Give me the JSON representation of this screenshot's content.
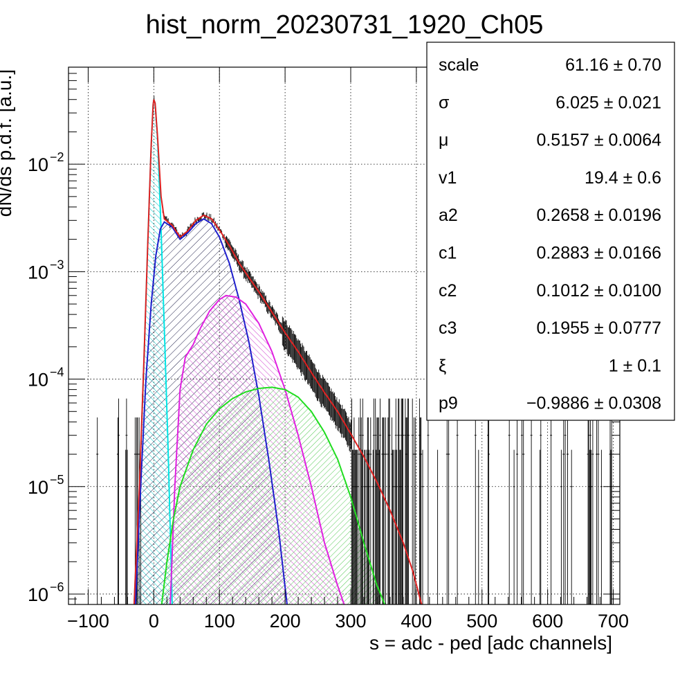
{
  "chart_data": {
    "type": "line",
    "title": "hist_norm_20230731_1920_Ch05",
    "xlabel": "s = adc - ped [adc channels]",
    "ylabel": "dN/ds p.d.f. [a.u.]",
    "xlim": [
      -130,
      710
    ],
    "ylim": [
      8e-07,
      0.08
    ],
    "yscale": "log",
    "grid": true,
    "x_ticks": [
      -100,
      0,
      100,
      200,
      300,
      400,
      500,
      600,
      700
    ],
    "y_ticks": [
      {
        "value": 1e-06,
        "label": "10",
        "exp": "−6"
      },
      {
        "value": 1e-05,
        "label": "10",
        "exp": "−5"
      },
      {
        "value": 0.0001,
        "label": "10",
        "exp": "−4"
      },
      {
        "value": 0.001,
        "label": "10",
        "exp": "−3"
      },
      {
        "value": 0.01,
        "label": "10",
        "exp": "−2"
      }
    ],
    "fit_parameters": [
      {
        "name": "scale",
        "value": "61.16",
        "error": "0.70"
      },
      {
        "name": "σ",
        "value": "6.025",
        "error": "0.021"
      },
      {
        "name": "μ",
        "value": "0.5157",
        "error": "0.0064"
      },
      {
        "name": "v1",
        "value": "19.4",
        "error": "0.6"
      },
      {
        "name": "a2",
        "value": "0.2658",
        "error": "0.0196"
      },
      {
        "name": "c1",
        "value": "0.2883",
        "error": "0.0166"
      },
      {
        "name": "c2",
        "value": "0.1012",
        "error": "0.0100"
      },
      {
        "name": "c3",
        "value": "0.1955",
        "error": "0.0777"
      },
      {
        "name": "ξ",
        "value": "1",
        "error": "0.1"
      },
      {
        "name": "p9",
        "value": "−0.9886",
        "error": "0.0308"
      }
    ],
    "components": [
      {
        "id": "pedestal",
        "color": "#00e5e5",
        "fill_pattern": "hatch-cyan",
        "points": [
          [
            -30,
            8e-07
          ],
          [
            -22,
            1e-05
          ],
          [
            -15,
            0.00015
          ],
          [
            -8,
            0.003
          ],
          [
            -4,
            0.015
          ],
          [
            -1,
            0.036
          ],
          [
            0,
            0.04
          ],
          [
            2,
            0.037
          ],
          [
            6,
            0.016
          ],
          [
            11,
            0.0025
          ],
          [
            16,
            0.0003
          ],
          [
            22,
            2e-05
          ],
          [
            28,
            8e-07
          ]
        ]
      },
      {
        "id": "one-photoelectron",
        "color": "#1e1ecc",
        "fill_pattern": "hatch-navy",
        "points": [
          [
            -28,
            8e-07
          ],
          [
            -20,
            1e-05
          ],
          [
            -12,
            0.0001
          ],
          [
            -4,
            0.0005
          ],
          [
            3,
            0.0014
          ],
          [
            10,
            0.0025
          ],
          [
            16,
            0.0029
          ],
          [
            28,
            0.0026
          ],
          [
            40,
            0.002
          ],
          [
            52,
            0.0023
          ],
          [
            64,
            0.0028
          ],
          [
            76,
            0.0031
          ],
          [
            88,
            0.0028
          ],
          [
            100,
            0.0021
          ],
          [
            115,
            0.0012
          ],
          [
            130,
            0.00055
          ],
          [
            145,
            0.00022
          ],
          [
            160,
            7e-05
          ],
          [
            175,
            1.8e-05
          ],
          [
            190,
            4e-06
          ],
          [
            203,
            8e-07
          ]
        ]
      },
      {
        "id": "two-photoelectron",
        "color": "#e020e0",
        "fill_pattern": "hatch-magenta",
        "points": [
          [
            25,
            8e-07
          ],
          [
            32,
            1e-05
          ],
          [
            40,
            8e-05
          ],
          [
            48,
            0.00016
          ],
          [
            60,
            0.00021
          ],
          [
            70,
            0.00029
          ],
          [
            85,
            0.00043
          ],
          [
            100,
            0.00055
          ],
          [
            110,
            0.0006
          ],
          [
            125,
            0.00058
          ],
          [
            140,
            0.0005
          ],
          [
            160,
            0.00033
          ],
          [
            180,
            0.00018
          ],
          [
            200,
            8e-05
          ],
          [
            220,
            3e-05
          ],
          [
            240,
            1e-05
          ],
          [
            260,
            3e-06
          ],
          [
            280,
            1.2e-06
          ],
          [
            290,
            8e-07
          ]
        ]
      },
      {
        "id": "three-photoelectron",
        "color": "#20dd20",
        "fill_pattern": "hatch-green",
        "points": [
          [
            12,
            8e-07
          ],
          [
            20,
            2e-06
          ],
          [
            30,
            5e-06
          ],
          [
            40,
            1e-05
          ],
          [
            60,
            2.2e-05
          ],
          [
            80,
            3.8e-05
          ],
          [
            100,
            5.3e-05
          ],
          [
            120,
            6.6e-05
          ],
          [
            140,
            7.6e-05
          ],
          [
            160,
            8.2e-05
          ],
          [
            180,
            8.4e-05
          ],
          [
            200,
            8e-05
          ],
          [
            220,
            6.8e-05
          ],
          [
            240,
            5e-05
          ],
          [
            260,
            3.2e-05
          ],
          [
            280,
            1.8e-05
          ],
          [
            300,
            8e-06
          ],
          [
            320,
            3e-06
          ],
          [
            340,
            1.2e-06
          ],
          [
            352,
            8e-07
          ]
        ]
      },
      {
        "id": "total-fit",
        "color": "#e02020",
        "fill_pattern": "none",
        "points": [
          [
            -30,
            8e-07
          ],
          [
            -22,
            1e-05
          ],
          [
            -15,
            0.00015
          ],
          [
            -8,
            0.003
          ],
          [
            -4,
            0.015
          ],
          [
            -1,
            0.036
          ],
          [
            0,
            0.04
          ],
          [
            2,
            0.037
          ],
          [
            6,
            0.017
          ],
          [
            11,
            0.005
          ],
          [
            16,
            0.0031
          ],
          [
            28,
            0.0027
          ],
          [
            40,
            0.0021
          ],
          [
            52,
            0.0024
          ],
          [
            64,
            0.003
          ],
          [
            76,
            0.00335
          ],
          [
            88,
            0.0031
          ],
          [
            100,
            0.00245
          ],
          [
            115,
            0.00175
          ],
          [
            130,
            0.0012
          ],
          [
            145,
            0.00088
          ],
          [
            160,
            0.00065
          ],
          [
            180,
            0.00042
          ],
          [
            200,
            0.00027
          ],
          [
            220,
            0.00018
          ],
          [
            240,
            0.000115
          ],
          [
            260,
            7.5e-05
          ],
          [
            280,
            5e-05
          ],
          [
            300,
            3.1e-05
          ],
          [
            320,
            1.9e-05
          ],
          [
            340,
            1.1e-05
          ],
          [
            360,
            6e-06
          ],
          [
            380,
            3e-06
          ],
          [
            395,
            1.6e-06
          ],
          [
            408,
            8e-07
          ]
        ]
      }
    ]
  }
}
